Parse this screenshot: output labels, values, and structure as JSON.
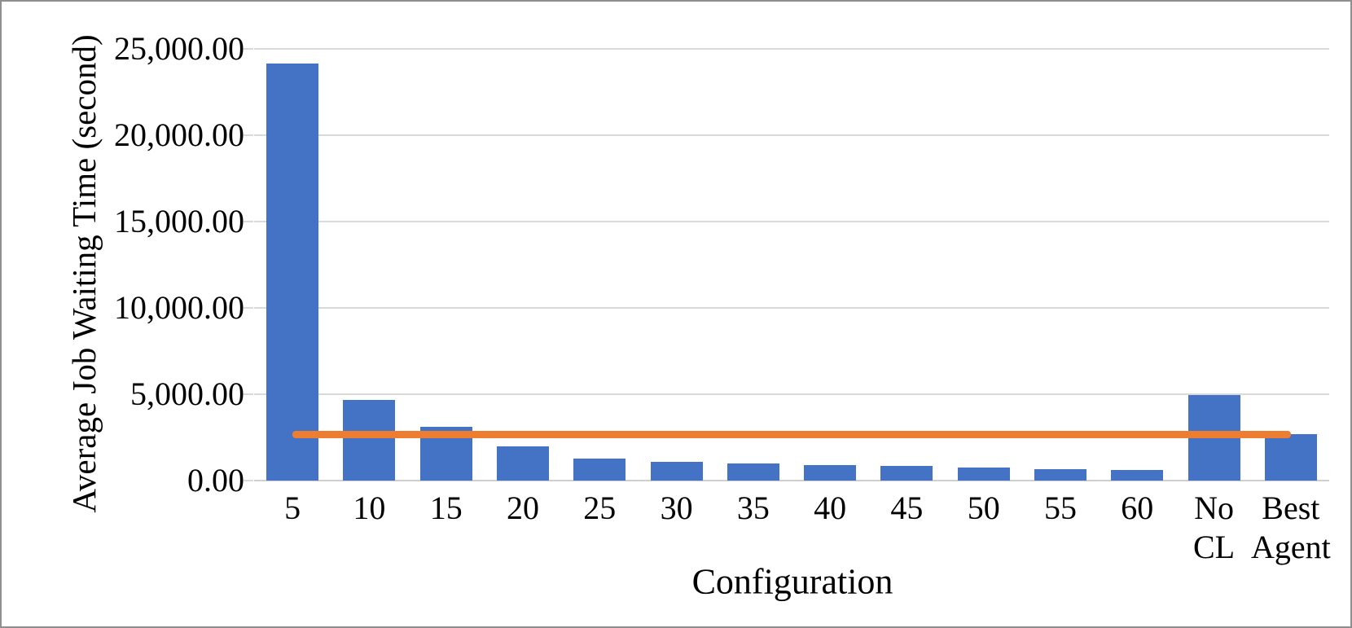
{
  "chart_data": {
    "type": "bar",
    "title": "",
    "xlabel": "Configuration",
    "ylabel": "Average Job Waiting Time (second)",
    "categories": [
      "5",
      "10",
      "15",
      "20",
      "25",
      "30",
      "35",
      "40",
      "45",
      "50",
      "55",
      "60",
      "No CL",
      "Best Agent"
    ],
    "values": [
      24150,
      4650,
      3130,
      2000,
      1280,
      1090,
      970,
      900,
      850,
      760,
      660,
      620,
      4930,
      2700
    ],
    "series_name": "Average Job Waiting Time",
    "ylim": [
      0,
      25000
    ],
    "ytick_step": 5000,
    "ytick_labels": [
      "0.00",
      "5,000.00",
      "10,000.00",
      "15,000.00",
      "20,000.00",
      "25,000.00"
    ],
    "reference_line": {
      "value": 2700,
      "color": "#ed7d31"
    },
    "bar_color": "#4472c4",
    "gridline_color": "#d9d9d9",
    "grid": true,
    "legend": "none"
  }
}
